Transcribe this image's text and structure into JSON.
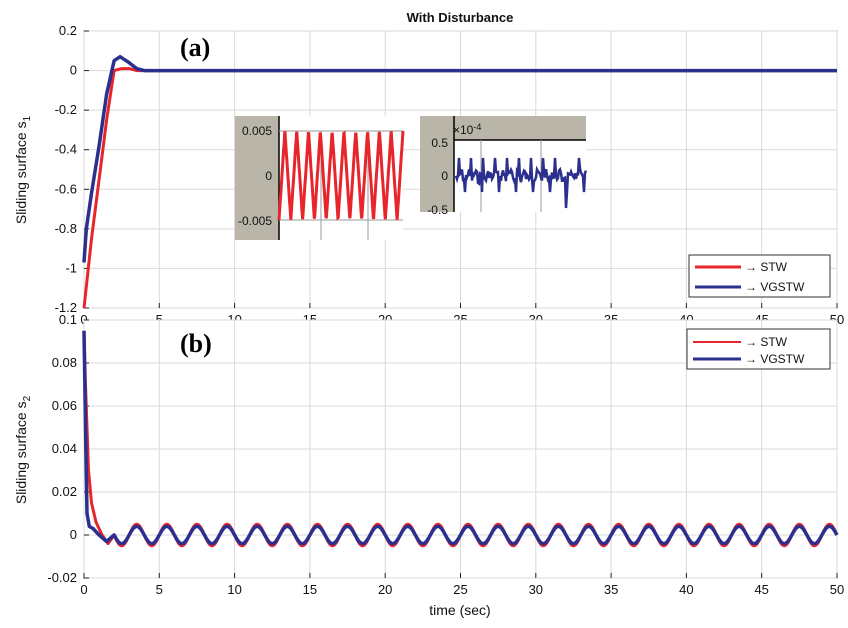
{
  "chart_data": [
    {
      "type": "line",
      "panel_tag": "(a)",
      "title": "With Disturbance",
      "xlabel": "",
      "ylabel": "Sliding surface s",
      "ylabel_sub": "1",
      "xlim": [
        0,
        50
      ],
      "ylim": [
        -1.2,
        0.2
      ],
      "xticks": [
        "0",
        "5",
        "10",
        "15",
        "20",
        "25",
        "30",
        "35",
        "40",
        "45",
        "50"
      ],
      "yticks": [
        "0.2",
        "0",
        "-0.2",
        "-0.4",
        "-0.6",
        "-0.8",
        "-1",
        "-1.2"
      ],
      "grid": true,
      "legend_position": "bottom-right",
      "series": [
        {
          "name": "→ STW",
          "color": "#e8252b",
          "x": [
            0,
            0.5,
            1,
            1.5,
            2,
            2.5,
            3,
            3.5,
            4,
            5,
            10,
            20,
            30,
            40,
            50
          ],
          "y": [
            -1.2,
            -0.85,
            -0.55,
            -0.25,
            0.0,
            0.01,
            0.01,
            0.0,
            0.0,
            0.0,
            0.0,
            0.0,
            0.0,
            0.0,
            0.0
          ]
        },
        {
          "name": "→ VGSTW",
          "color": "#2b2f8e",
          "x": [
            0,
            0.15,
            0.5,
            1,
            1.5,
            2,
            2.4,
            3,
            3.5,
            4,
            5,
            10,
            20,
            30,
            40,
            50
          ],
          "y": [
            -0.97,
            -0.8,
            -0.62,
            -0.38,
            -0.12,
            0.05,
            0.07,
            0.04,
            0.01,
            0.0,
            0.0,
            0.0,
            0.0,
            0.0,
            0.0,
            0.0
          ]
        }
      ],
      "insets": [
        {
          "yticks": [
            "0.005",
            "0",
            "-0.005"
          ],
          "color": "#e8252b",
          "amplitude": 0.005,
          "cycles": 10.5
        },
        {
          "exponent_label": "×10",
          "exponent_value": "-4",
          "yticks": [
            "0.5",
            "0",
            "-0.5"
          ],
          "color": "#2b2f8e"
        }
      ]
    },
    {
      "type": "line",
      "panel_tag": "(b)",
      "title": "",
      "xlabel": "time (sec)",
      "ylabel": "Sliding surface s",
      "ylabel_sub": "2",
      "xlim": [
        0,
        50
      ],
      "ylim": [
        -0.02,
        0.1
      ],
      "xticks": [
        "0",
        "5",
        "10",
        "15",
        "20",
        "25",
        "30",
        "35",
        "40",
        "45",
        "50"
      ],
      "yticks": [
        "0.1",
        "0.08",
        "0.06",
        "0.04",
        "0.02",
        "0",
        "-0.02"
      ],
      "grid": true,
      "legend_position": "top-right",
      "series": [
        {
          "name": "→ STW",
          "color": "#e8252b",
          "x": [
            0,
            0.1,
            0.3,
            0.5,
            0.8,
            1.2,
            1.6,
            2.0
          ],
          "y": [
            0.095,
            0.07,
            0.03,
            0.015,
            0.006,
            0.0,
            -0.004,
            0.0
          ],
          "oscillation_amplitude": 0.005,
          "oscillation_period": 2.0
        },
        {
          "name": "→ VGSTW",
          "color": "#2b2f8e",
          "x": [
            0,
            0.1,
            0.2,
            0.35,
            0.6,
            1.0,
            1.5,
            2.0
          ],
          "y": [
            0.095,
            0.05,
            0.01,
            0.004,
            0.003,
            0.0,
            -0.003,
            0.0
          ],
          "oscillation_amplitude": 0.004,
          "oscillation_period": 2.0
        }
      ]
    }
  ]
}
